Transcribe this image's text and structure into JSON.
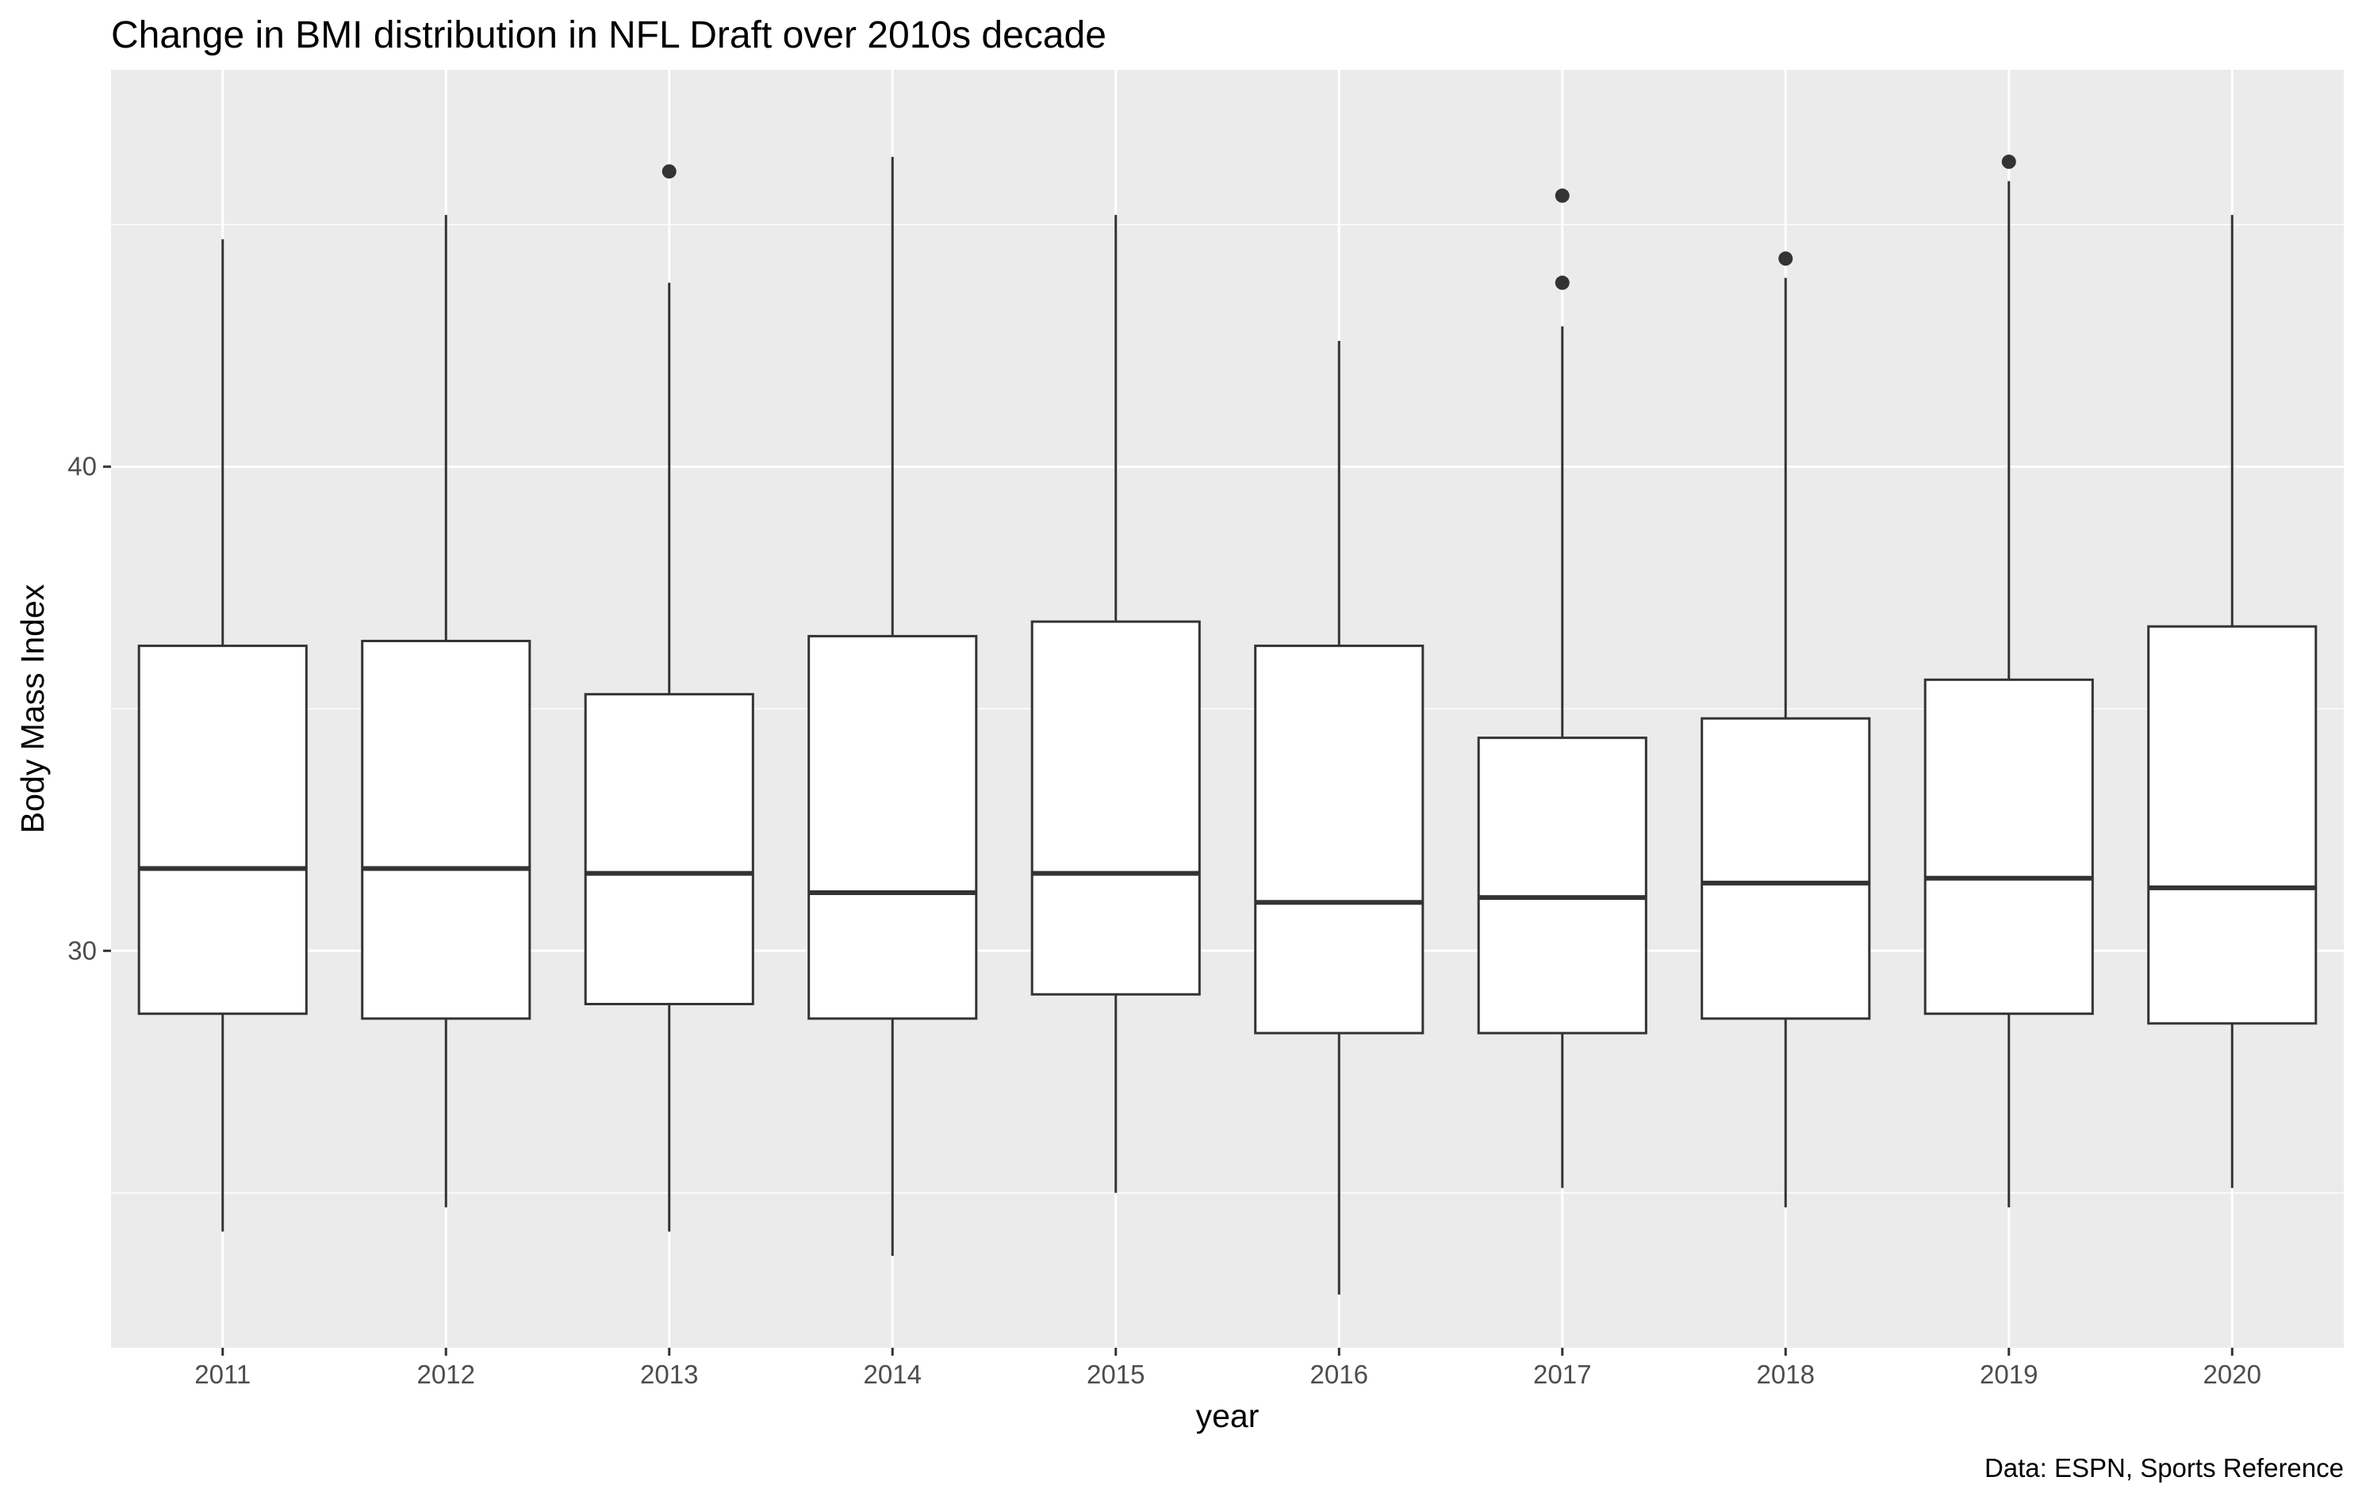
{
  "chart_data": {
    "type": "boxplot",
    "title": "Change in BMI distribution in NFL Draft over 2010s decade",
    "xlabel": "year",
    "ylabel": "Body Mass Index",
    "caption": "Data: ESPN, Sports Reference",
    "categories": [
      "2011",
      "2012",
      "2013",
      "2014",
      "2015",
      "2016",
      "2017",
      "2018",
      "2019",
      "2020"
    ],
    "ylim": [
      21.8,
      48.2
    ],
    "yticks": [
      30,
      40
    ],
    "grid": true,
    "boxes": [
      {
        "year": "2011",
        "whisker_low": 24.2,
        "q1": 28.7,
        "median": 31.7,
        "q3": 36.3,
        "whisker_high": 44.7,
        "outliers": []
      },
      {
        "year": "2012",
        "whisker_low": 24.7,
        "q1": 28.6,
        "median": 31.7,
        "q3": 36.4,
        "whisker_high": 45.2,
        "outliers": []
      },
      {
        "year": "2013",
        "whisker_low": 24.2,
        "q1": 28.9,
        "median": 31.6,
        "q3": 35.3,
        "whisker_high": 43.8,
        "outliers": [
          46.1
        ]
      },
      {
        "year": "2014",
        "whisker_low": 23.7,
        "q1": 28.6,
        "median": 31.2,
        "q3": 36.5,
        "whisker_high": 46.4,
        "outliers": []
      },
      {
        "year": "2015",
        "whisker_low": 25.0,
        "q1": 29.1,
        "median": 31.6,
        "q3": 36.8,
        "whisker_high": 45.2,
        "outliers": []
      },
      {
        "year": "2016",
        "whisker_low": 22.9,
        "q1": 28.3,
        "median": 31.0,
        "q3": 36.3,
        "whisker_high": 42.6,
        "outliers": []
      },
      {
        "year": "2017",
        "whisker_low": 25.1,
        "q1": 28.3,
        "median": 31.1,
        "q3": 34.4,
        "whisker_high": 42.9,
        "outliers": [
          43.8,
          45.6
        ]
      },
      {
        "year": "2018",
        "whisker_low": 24.7,
        "q1": 28.6,
        "median": 31.4,
        "q3": 34.8,
        "whisker_high": 43.9,
        "outliers": [
          44.3
        ]
      },
      {
        "year": "2019",
        "whisker_low": 24.7,
        "q1": 28.7,
        "median": 31.5,
        "q3": 35.6,
        "whisker_high": 45.9,
        "outliers": [
          46.3
        ]
      },
      {
        "year": "2020",
        "whisker_low": 25.1,
        "q1": 28.5,
        "median": 31.3,
        "q3": 36.7,
        "whisker_high": 45.2,
        "outliers": []
      }
    ],
    "colors": {
      "panel_background": "#ebebeb",
      "grid_major": "#ffffff",
      "box_fill": "#ffffff",
      "box_line": "#333333",
      "tick_text": "#4d4d4d"
    }
  }
}
